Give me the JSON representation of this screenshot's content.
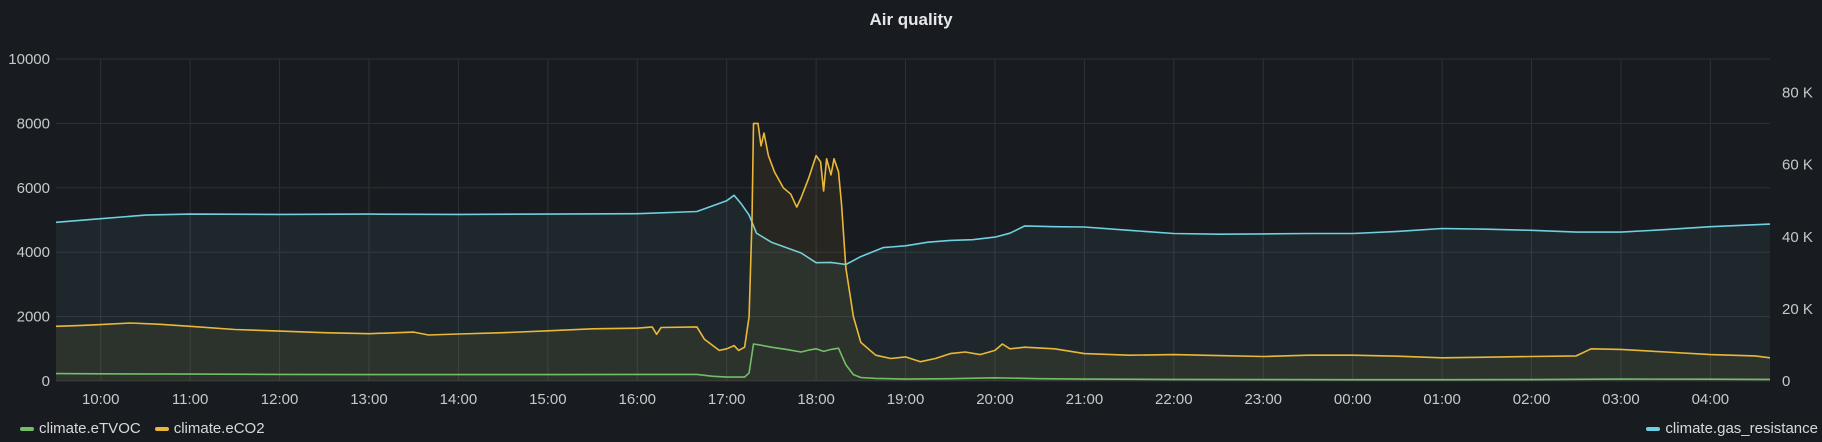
{
  "panel": {
    "title": "Air quality"
  },
  "colors": {
    "background": "#181b1f",
    "grid": "#2f3136",
    "etvoc": "#73bf69",
    "eco2": "#eab839",
    "gas_resistance": "#6ed0e0"
  },
  "chart_data": {
    "type": "line",
    "title": "Air quality",
    "x_type": "time",
    "x_ticks": [
      "10:00",
      "11:00",
      "12:00",
      "13:00",
      "14:00",
      "15:00",
      "16:00",
      "17:00",
      "18:00",
      "19:00",
      "20:00",
      "21:00",
      "22:00",
      "23:00",
      "00:00",
      "01:00",
      "02:00",
      "03:00",
      "04:00"
    ],
    "x_range": [
      "09:30",
      "04:40"
    ],
    "y_left": {
      "ticks": [
        "0",
        "2000",
        "4000",
        "6000",
        "8000",
        "10000"
      ],
      "range": [
        0,
        10000
      ]
    },
    "y_right": {
      "ticks": [
        "0",
        "20 K",
        "40 K",
        "60 K",
        "80 K"
      ],
      "range": [
        0,
        89300
      ]
    },
    "grid": true,
    "legend_placement": "bottom",
    "series": [
      {
        "name": "climate.eTVOC",
        "axis": "left",
        "color": "#73bf69",
        "fill": false,
        "points": [
          [
            "09:30",
            230
          ],
          [
            "10:00",
            225
          ],
          [
            "11:00",
            215
          ],
          [
            "12:00",
            205
          ],
          [
            "13:00",
            200
          ],
          [
            "14:00",
            200
          ],
          [
            "15:00",
            200
          ],
          [
            "16:00",
            205
          ],
          [
            "16:40",
            205
          ],
          [
            "16:50",
            150
          ],
          [
            "17:00",
            120
          ],
          [
            "17:12",
            120
          ],
          [
            "17:15",
            250
          ],
          [
            "17:18",
            1150
          ],
          [
            "17:22",
            1120
          ],
          [
            "17:30",
            1050
          ],
          [
            "17:40",
            980
          ],
          [
            "17:50",
            900
          ],
          [
            "17:55",
            960
          ],
          [
            "18:00",
            1000
          ],
          [
            "18:05",
            920
          ],
          [
            "18:10",
            980
          ],
          [
            "18:15",
            1020
          ],
          [
            "18:20",
            500
          ],
          [
            "18:25",
            200
          ],
          [
            "18:30",
            110
          ],
          [
            "18:40",
            80
          ],
          [
            "19:00",
            60
          ],
          [
            "19:30",
            70
          ],
          [
            "20:00",
            100
          ],
          [
            "20:30",
            70
          ],
          [
            "21:00",
            60
          ],
          [
            "22:00",
            50
          ],
          [
            "23:00",
            45
          ],
          [
            "00:00",
            40
          ],
          [
            "01:00",
            40
          ],
          [
            "02:00",
            45
          ],
          [
            "03:00",
            60
          ],
          [
            "04:00",
            55
          ],
          [
            "04:40",
            50
          ]
        ]
      },
      {
        "name": "climate.eCO2",
        "axis": "left",
        "color": "#eab839",
        "fill": true,
        "points": [
          [
            "09:30",
            1700
          ],
          [
            "09:45",
            1720
          ],
          [
            "10:00",
            1750
          ],
          [
            "10:20",
            1800
          ],
          [
            "10:40",
            1760
          ],
          [
            "11:00",
            1700
          ],
          [
            "11:30",
            1600
          ],
          [
            "12:00",
            1550
          ],
          [
            "12:30",
            1500
          ],
          [
            "13:00",
            1470
          ],
          [
            "13:30",
            1520
          ],
          [
            "13:40",
            1430
          ],
          [
            "14:00",
            1460
          ],
          [
            "14:30",
            1500
          ],
          [
            "15:00",
            1560
          ],
          [
            "15:30",
            1620
          ],
          [
            "16:00",
            1640
          ],
          [
            "16:10",
            1680
          ],
          [
            "16:13",
            1450
          ],
          [
            "16:16",
            1660
          ],
          [
            "16:40",
            1680
          ],
          [
            "16:45",
            1300
          ],
          [
            "16:55",
            950
          ],
          [
            "17:00",
            1000
          ],
          [
            "17:05",
            1100
          ],
          [
            "17:08",
            950
          ],
          [
            "17:12",
            1050
          ],
          [
            "17:15",
            2000
          ],
          [
            "17:17",
            5000
          ],
          [
            "17:18",
            8000
          ],
          [
            "17:21",
            8000
          ],
          [
            "17:23",
            7300
          ],
          [
            "17:25",
            7700
          ],
          [
            "17:28",
            7000
          ],
          [
            "17:32",
            6500
          ],
          [
            "17:38",
            6000
          ],
          [
            "17:43",
            5800
          ],
          [
            "17:47",
            5400
          ],
          [
            "17:50",
            5700
          ],
          [
            "17:55",
            6300
          ],
          [
            "18:00",
            7000
          ],
          [
            "18:03",
            6800
          ],
          [
            "18:05",
            5900
          ],
          [
            "18:07",
            6900
          ],
          [
            "18:10",
            6400
          ],
          [
            "18:12",
            6900
          ],
          [
            "18:15",
            6500
          ],
          [
            "18:17",
            5500
          ],
          [
            "18:20",
            3500
          ],
          [
            "18:25",
            2000
          ],
          [
            "18:30",
            1200
          ],
          [
            "18:40",
            800
          ],
          [
            "18:50",
            700
          ],
          [
            "19:00",
            750
          ],
          [
            "19:10",
            600
          ],
          [
            "19:20",
            700
          ],
          [
            "19:30",
            850
          ],
          [
            "19:40",
            900
          ],
          [
            "19:50",
            820
          ],
          [
            "20:00",
            950
          ],
          [
            "20:05",
            1150
          ],
          [
            "20:10",
            1000
          ],
          [
            "20:20",
            1050
          ],
          [
            "20:40",
            1000
          ],
          [
            "21:00",
            850
          ],
          [
            "21:30",
            800
          ],
          [
            "22:00",
            820
          ],
          [
            "22:30",
            790
          ],
          [
            "23:00",
            760
          ],
          [
            "23:30",
            800
          ],
          [
            "00:00",
            800
          ],
          [
            "00:30",
            770
          ],
          [
            "01:00",
            720
          ],
          [
            "01:30",
            740
          ],
          [
            "02:00",
            760
          ],
          [
            "02:30",
            780
          ],
          [
            "02:40",
            1000
          ],
          [
            "03:00",
            980
          ],
          [
            "03:30",
            900
          ],
          [
            "04:00",
            820
          ],
          [
            "04:30",
            780
          ],
          [
            "04:40",
            720
          ]
        ]
      },
      {
        "name": "climate.gas_resistance",
        "axis": "right",
        "color": "#6ed0e0",
        "fill": true,
        "points": [
          [
            "09:30",
            44000
          ],
          [
            "10:00",
            45000
          ],
          [
            "10:30",
            46000
          ],
          [
            "11:00",
            46300
          ],
          [
            "12:00",
            46200
          ],
          [
            "13:00",
            46300
          ],
          [
            "14:00",
            46200
          ],
          [
            "15:00",
            46300
          ],
          [
            "16:00",
            46400
          ],
          [
            "16:40",
            47000
          ],
          [
            "16:50",
            48500
          ],
          [
            "17:00",
            50000
          ],
          [
            "17:05",
            51500
          ],
          [
            "17:10",
            49000
          ],
          [
            "17:15",
            46000
          ],
          [
            "17:20",
            41000
          ],
          [
            "17:30",
            38500
          ],
          [
            "17:40",
            37000
          ],
          [
            "17:50",
            35500
          ],
          [
            "18:00",
            32800
          ],
          [
            "18:10",
            32900
          ],
          [
            "18:20",
            32300
          ],
          [
            "18:30",
            34500
          ],
          [
            "18:45",
            37000
          ],
          [
            "19:00",
            37500
          ],
          [
            "19:15",
            38500
          ],
          [
            "19:30",
            39000
          ],
          [
            "19:45",
            39200
          ],
          [
            "20:00",
            39900
          ],
          [
            "20:10",
            41000
          ],
          [
            "20:20",
            43000
          ],
          [
            "20:40",
            42800
          ],
          [
            "21:00",
            42700
          ],
          [
            "21:30",
            41800
          ],
          [
            "22:00",
            40900
          ],
          [
            "22:30",
            40700
          ],
          [
            "23:00",
            40800
          ],
          [
            "23:30",
            40900
          ],
          [
            "00:00",
            40900
          ],
          [
            "00:30",
            41500
          ],
          [
            "01:00",
            42300
          ],
          [
            "01:30",
            42100
          ],
          [
            "02:00",
            41800
          ],
          [
            "02:30",
            41300
          ],
          [
            "03:00",
            41300
          ],
          [
            "03:30",
            42000
          ],
          [
            "04:00",
            42800
          ],
          [
            "04:40",
            43500
          ]
        ]
      }
    ]
  },
  "legend": {
    "left": [
      "climate.eTVOC",
      "climate.eCO2"
    ],
    "right": [
      "climate.gas_resistance"
    ]
  }
}
